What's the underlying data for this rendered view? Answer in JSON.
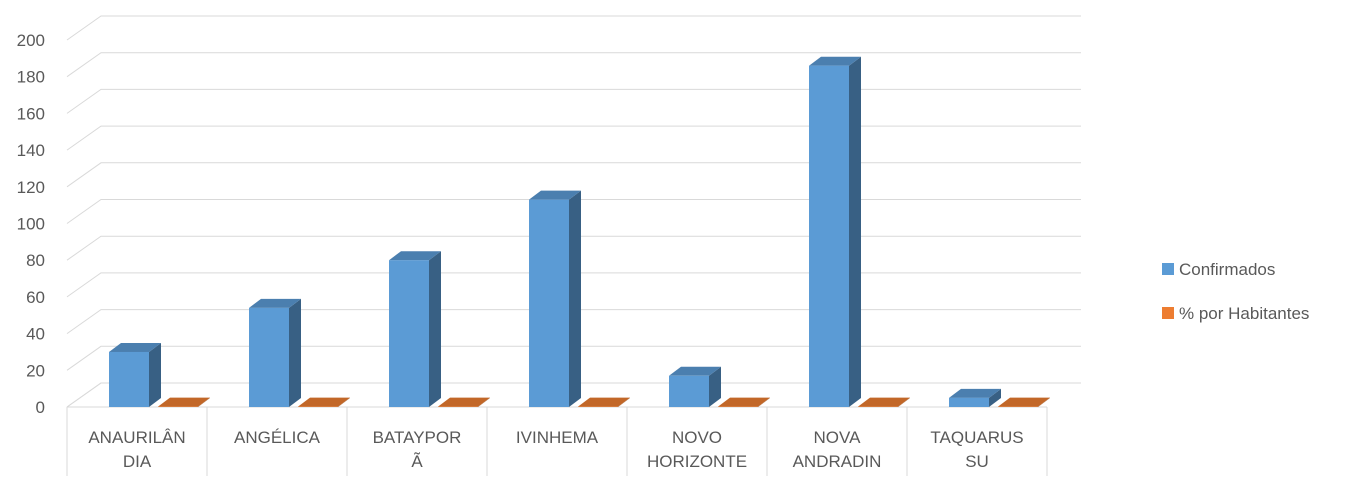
{
  "chart_data": {
    "type": "bar",
    "style": "3d-clustered-column",
    "categories": [
      [
        "ANAURILÂN",
        "DIA"
      ],
      [
        "ANGÉLICA"
      ],
      [
        "BATAYPOR",
        "Ã"
      ],
      [
        "IVINHEMA"
      ],
      [
        "NOVO",
        "HORIZONTE"
      ],
      [
        "NOVA",
        "ANDRADIN"
      ],
      [
        "TAQUARUS",
        "SU"
      ]
    ],
    "series": [
      {
        "name": "Confirmados",
        "color": "#5B9BD5",
        "values": [
          30,
          54,
          80,
          113,
          17,
          186,
          5
        ]
      },
      {
        "name": "% por Habitantes",
        "color": "#ED7D31",
        "values": [
          0.2,
          0.2,
          0.2,
          0.2,
          0.2,
          0.2,
          0.2
        ]
      }
    ],
    "yticks": [
      0,
      20,
      40,
      60,
      80,
      100,
      120,
      140,
      160,
      180,
      200
    ],
    "ylim": [
      0,
      200
    ],
    "grid": true,
    "legend_position": "right"
  }
}
